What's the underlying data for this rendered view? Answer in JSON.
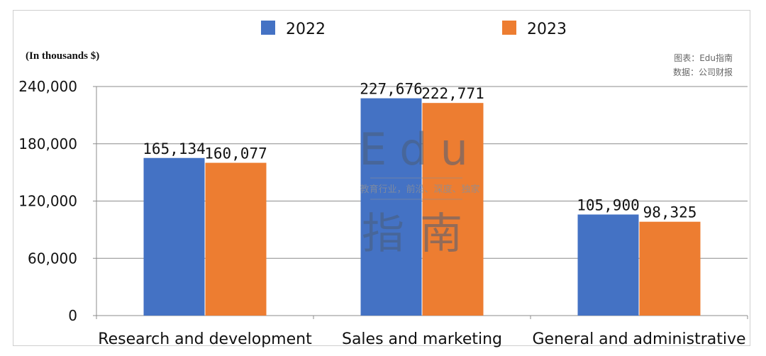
{
  "chart_data": {
    "type": "bar",
    "categories": [
      "Research and development",
      "Sales and marketing",
      "General and administrative"
    ],
    "series": [
      {
        "name": "2022",
        "values": [
          165134,
          227676,
          105900
        ],
        "labels": [
          "165,134",
          "227,676",
          "105,900"
        ],
        "color": "#4472C4"
      },
      {
        "name": "2023",
        "values": [
          160077,
          222771,
          98325
        ],
        "labels": [
          "160,077",
          "222,771",
          "98,325"
        ],
        "color": "#ED7D31"
      }
    ],
    "unit_label": "(In thousands $)",
    "yticks": [
      0,
      60000,
      120000,
      180000,
      240000
    ],
    "ytick_labels": [
      "0",
      "60,000",
      "120,000",
      "180,000",
      "240,000"
    ],
    "ylim": [
      0,
      240000
    ],
    "grid": true,
    "legend_position": "top"
  },
  "source": {
    "line1": "图表：Edu指南",
    "line2": "数据：公司财报"
  },
  "watermark": {
    "top": "Edu",
    "middle": "教育行业，前沿、深度、独家",
    "bottom": "指南"
  }
}
